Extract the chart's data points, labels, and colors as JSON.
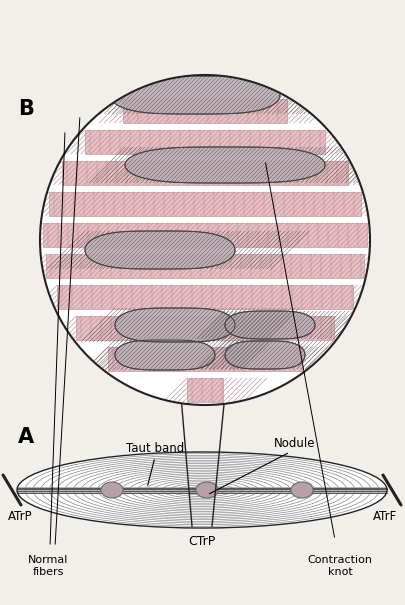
{
  "bg_color": "#f2eeea",
  "label_A": "A",
  "label_B": "B",
  "label_taut_band": "Taut band",
  "label_nodule": "Nodule",
  "label_ATrP": "ATrP",
  "label_CTrP": "CTrP",
  "label_ATrF": "ATrF",
  "label_normal_fibers": "Normal\nfibers",
  "label_contraction_knot": "Contraction\nknot",
  "muscle_pink": "#e8c0c4",
  "muscle_dark_pink": "#d4a0a8",
  "knot_fill": "#c0b0b8",
  "knot_edge": "#444444",
  "line_color": "#222222",
  "stripe_line": "#b89098",
  "nodule_fill": "#c8aab0",
  "white_gap": "#f8f4f0",
  "fiber_border": "#bb8890"
}
